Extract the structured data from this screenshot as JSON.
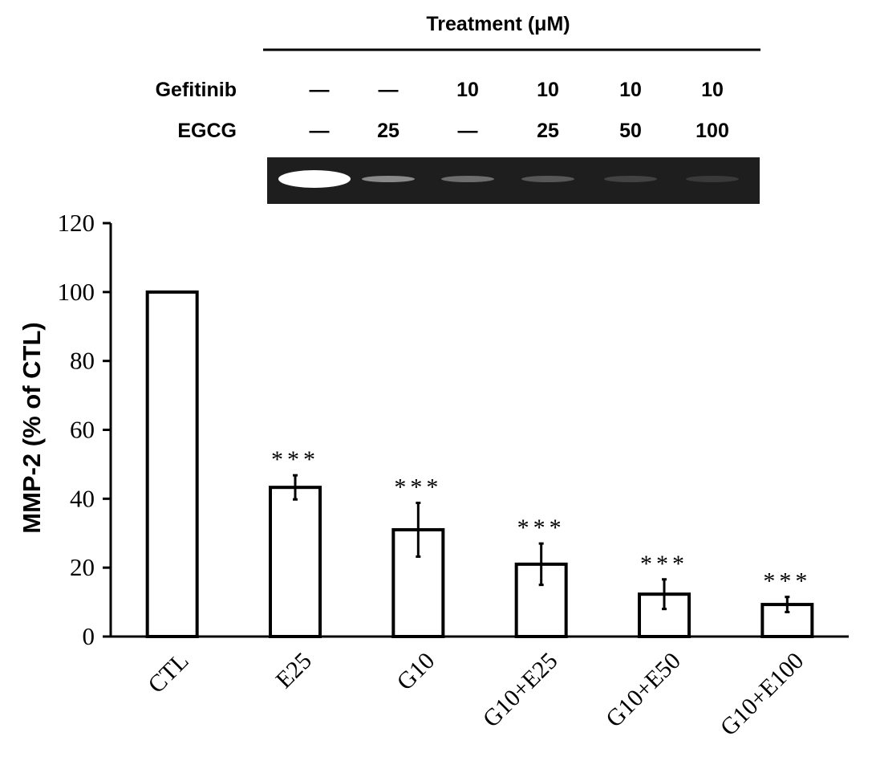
{
  "header": {
    "title": "Treatment (μM)",
    "rows": [
      {
        "label": "Gefitinib",
        "values": [
          "—",
          "—",
          "10",
          "10",
          "10",
          "10"
        ]
      },
      {
        "label": "EGCG",
        "values": [
          "—",
          "25",
          "—",
          "25",
          "50",
          "100"
        ]
      }
    ]
  },
  "gel": {
    "band_intensity": [
      1.0,
      0.45,
      0.32,
      0.22,
      0.12,
      0.08
    ]
  },
  "chart_data": {
    "type": "bar",
    "categories": [
      "CTL",
      "E25",
      "G10",
      "G10+E25",
      "G10+E50",
      "G10+E100"
    ],
    "series": [
      {
        "values": [
          100,
          43.3,
          31.0,
          21.0,
          12.3,
          9.3
        ],
        "errors": [
          0,
          3.5,
          7.8,
          6.0,
          4.3,
          2.2
        ]
      }
    ],
    "annotations": [
      "",
      "***",
      "***",
      "***",
      "***",
      "***"
    ],
    "ylabel": "MMP-2 (% of CTL)",
    "ylim": [
      0,
      120
    ],
    "yticks": [
      "0",
      "20",
      "40",
      "60",
      "80",
      "100",
      "120"
    ],
    "grid": false,
    "colors": {
      "bar_fill": "#ffffff",
      "bar_stroke": "#000000",
      "gel_bg": "#1e1e1e"
    }
  }
}
